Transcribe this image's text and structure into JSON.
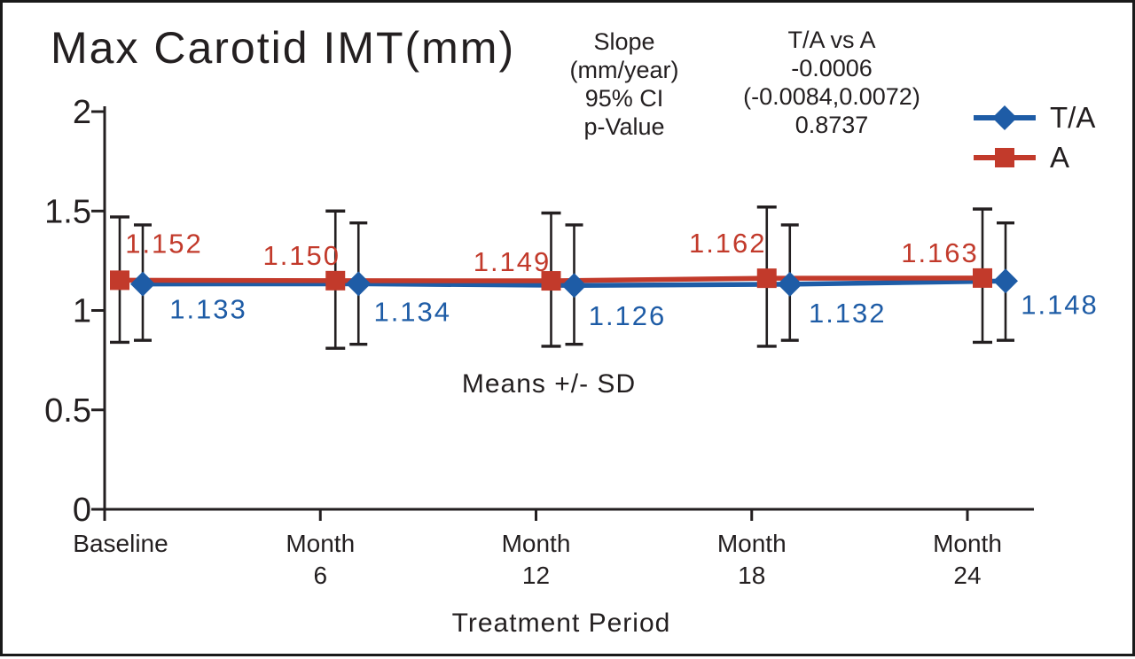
{
  "stats": {
    "labels": [
      "Slope",
      "(mm/year)",
      "95% CI",
      "p-Value"
    ],
    "comparison": "T/A vs A",
    "slope": "-0.0006",
    "ci": "(-0.0084,0.0072)",
    "p_value": "0.8737"
  },
  "colors": {
    "ta_blue": "#1e5ca6",
    "a_red": "#c23a2b",
    "axis_black": "#231f20"
  },
  "chart_data": {
    "type": "line",
    "title": "Max Carotid IMT(mm)",
    "xlabel": "Treatment Period",
    "annotation": "Means +/- SD",
    "categories": [
      "Baseline",
      "Month 6",
      "Month 12",
      "Month 18",
      "Month 24"
    ],
    "y_ticks": [
      "0",
      "0.5",
      "1",
      "1.5",
      "2"
    ],
    "ylim": [
      0,
      2
    ],
    "grid": false,
    "legend_position": "top-right",
    "error_bars": "means +/- SD",
    "series": [
      {
        "name": "T/A",
        "marker": "diamond",
        "color": "#1e5ca6",
        "values": [
          1.133,
          1.134,
          1.126,
          1.132,
          1.148
        ],
        "labels": [
          "1.133",
          "1.134",
          "1.126",
          "1.132",
          "1.148"
        ],
        "err_top": [
          1.43,
          1.44,
          1.43,
          1.43,
          1.44
        ],
        "err_bottom": [
          0.85,
          0.83,
          0.83,
          0.85,
          0.85
        ]
      },
      {
        "name": "A",
        "marker": "square",
        "color": "#c23a2b",
        "values": [
          1.152,
          1.15,
          1.149,
          1.162,
          1.163
        ],
        "labels": [
          "1.152",
          "1.150",
          "1.149",
          "1.162",
          "1.163"
        ],
        "err_top": [
          1.47,
          1.5,
          1.49,
          1.52,
          1.51
        ],
        "err_bottom": [
          0.84,
          0.81,
          0.82,
          0.82,
          0.84
        ]
      }
    ]
  }
}
